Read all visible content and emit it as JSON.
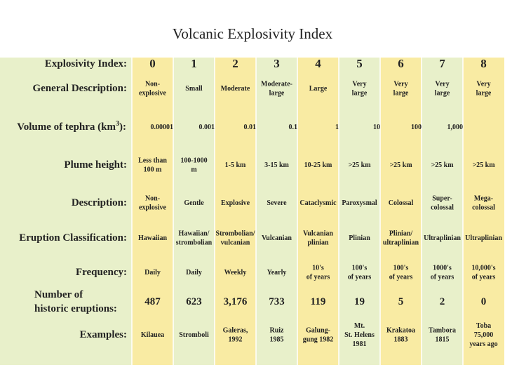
{
  "title": "Volcanic Explosivity Index",
  "table": {
    "header": {
      "label": [
        "Explosivity Index:"
      ],
      "cells": [
        [
          "0"
        ],
        [
          "1"
        ],
        [
          "2"
        ],
        [
          "3"
        ],
        [
          "4"
        ],
        [
          "5"
        ],
        [
          "6"
        ],
        [
          "7"
        ],
        [
          "8"
        ]
      ]
    },
    "general": {
      "label": [
        "General Description:"
      ],
      "cells": [
        [
          "Non-",
          "explosive"
        ],
        [
          "Small"
        ],
        [
          "Moderate"
        ],
        [
          "Moderate-",
          "large"
        ],
        [
          "Large"
        ],
        [
          "Very",
          "large"
        ],
        [
          "Very",
          "large"
        ],
        [
          "Very",
          "large"
        ],
        [
          "Very",
          "large"
        ]
      ]
    },
    "volume": {
      "label": [
        "Volume of tephra (km",
        "3",
        "):"
      ],
      "cells": [
        [
          "0.00001"
        ],
        [
          "0.001"
        ],
        [
          "0.01"
        ],
        [
          "0.1"
        ],
        [
          "1"
        ],
        [
          "10"
        ],
        [
          "100"
        ],
        [
          "1,000"
        ]
      ]
    },
    "plume": {
      "label": [
        "Plume height:"
      ],
      "cells": [
        [
          "Less than",
          "100 m"
        ],
        [
          "100-1000",
          "m"
        ],
        [
          "1-5 km"
        ],
        [
          "3-15 km"
        ],
        [
          "10-25 km"
        ],
        [
          ">25 km"
        ],
        [
          ">25 km"
        ],
        [
          ">25 km"
        ],
        [
          ">25 km"
        ]
      ]
    },
    "description": {
      "label": [
        "Description:"
      ],
      "cells": [
        [
          "Non-",
          "explosive"
        ],
        [
          "Gentle"
        ],
        [
          "Explosive"
        ],
        [
          "Severe"
        ],
        [
          "Cataclysmic"
        ],
        [
          "Paroxysmal"
        ],
        [
          "Colossal"
        ],
        [
          "Super-",
          "colossal"
        ],
        [
          "Mega-",
          "colossal"
        ]
      ]
    },
    "eruption": {
      "label": [
        "Eruption Classification:"
      ],
      "cells": [
        [
          "Hawaiian"
        ],
        [
          "Hawaiian/",
          "strombolian"
        ],
        [
          "Strombolian/",
          "vulcanian"
        ],
        [
          "Vulcanian"
        ],
        [
          "Vulcanian",
          "plinian"
        ],
        [
          "Plinian"
        ],
        [
          "Plinian/",
          "ultraplinian"
        ],
        [
          "Ultraplinian"
        ],
        [
          "Ultraplinian"
        ]
      ]
    },
    "frequency": {
      "label": [
        "Frequency:"
      ],
      "cells": [
        [
          "Daily"
        ],
        [
          "Daily"
        ],
        [
          "Weekly"
        ],
        [
          "Yearly"
        ],
        [
          "10's",
          "of years"
        ],
        [
          "100's",
          "of years"
        ],
        [
          "100's",
          "of years"
        ],
        [
          "1000's",
          "of years"
        ],
        [
          "10,000's",
          "of years"
        ]
      ]
    },
    "number": {
      "label": [
        "Number of",
        "historic eruptions:"
      ],
      "cells": [
        [
          "487"
        ],
        [
          "623"
        ],
        [
          "3,176"
        ],
        [
          "733"
        ],
        [
          "119"
        ],
        [
          "19"
        ],
        [
          "5"
        ],
        [
          "2"
        ],
        [
          "0"
        ]
      ]
    },
    "examples": {
      "label": [
        "Examples:"
      ],
      "cells": [
        [
          "Kilauea"
        ],
        [
          "Stromboli"
        ],
        [
          "Galeras,",
          "1992"
        ],
        [
          "Ruiz",
          "1985"
        ],
        [
          "Galung-",
          "gung 1982"
        ],
        [
          "Mt.",
          "St. Helens",
          "1981"
        ],
        [
          "Krakatoa",
          "1883"
        ],
        [
          "Tambora",
          "1815"
        ],
        [
          "Toba",
          "75,000",
          "years ago"
        ]
      ]
    }
  }
}
